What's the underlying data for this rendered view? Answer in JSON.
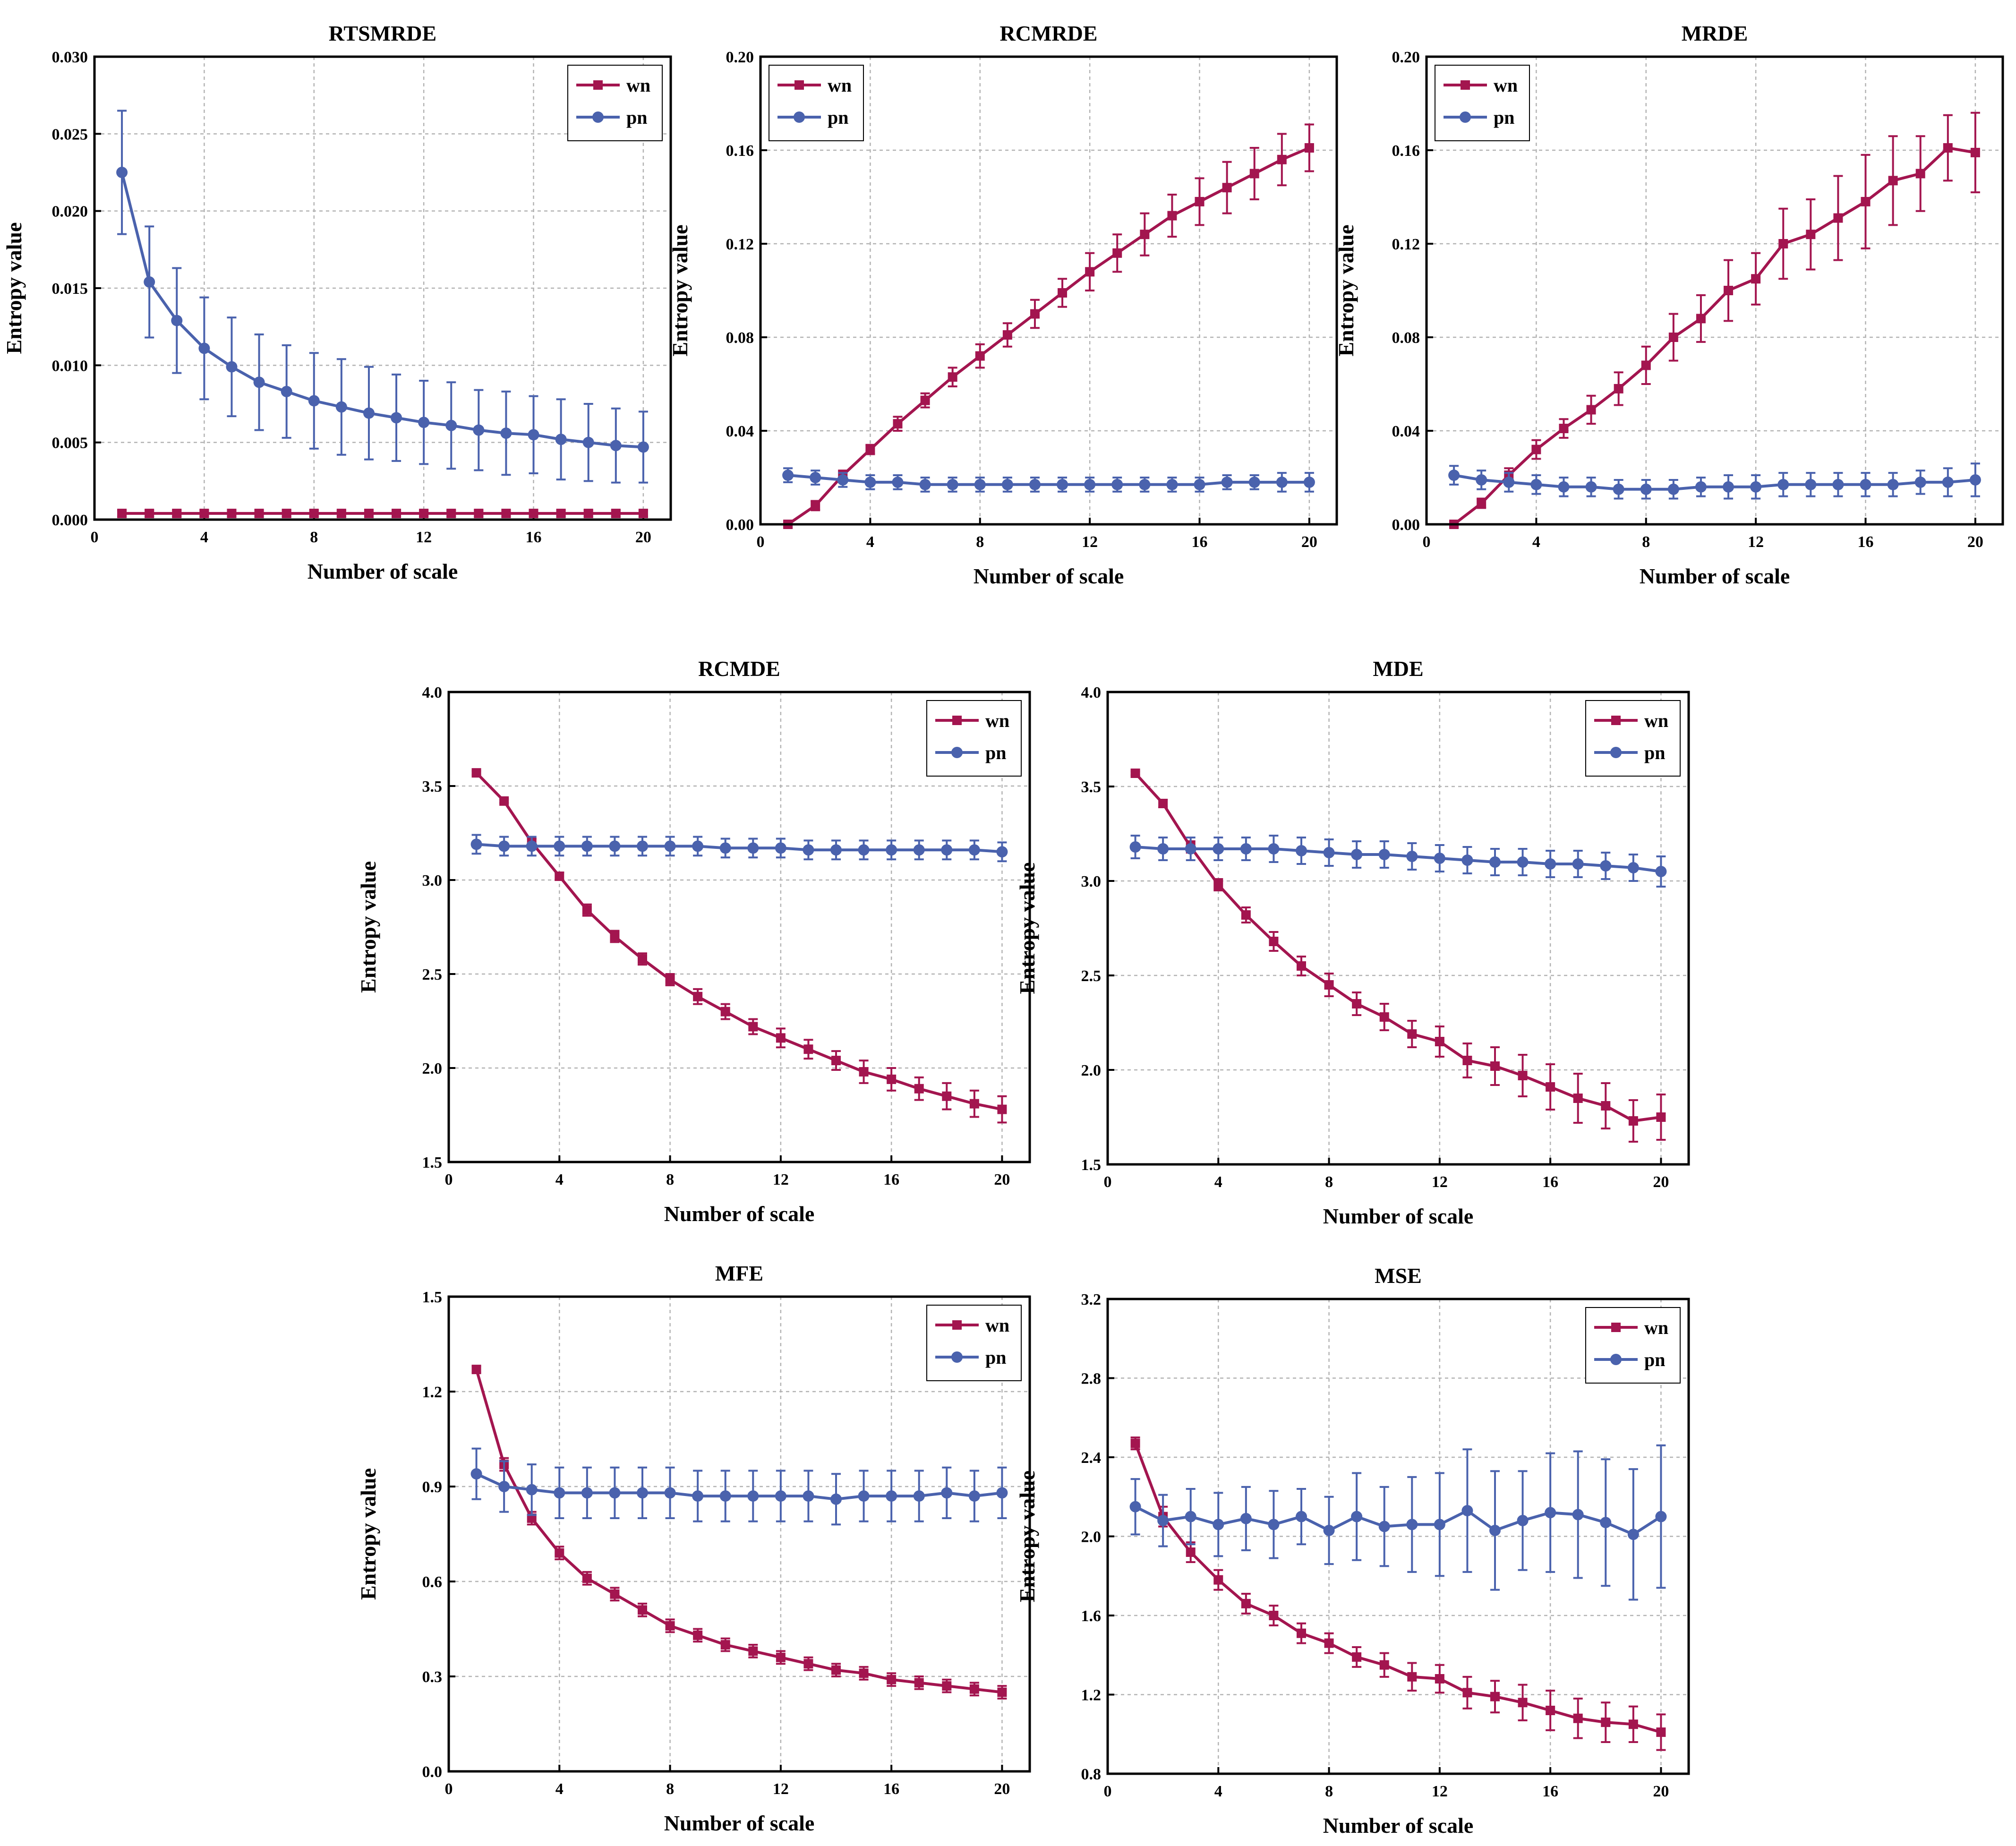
{
  "colors": {
    "wn": "#a3154f",
    "pn": "#4a62ad",
    "grid": "#b3b3b3",
    "frame": "#000000"
  },
  "chart_data": [
    {
      "type": "line",
      "title": "RTSMRDE",
      "xlabel": "Number of scale",
      "ylabel": "Entropy value",
      "xlim": [
        0,
        21
      ],
      "ylim": [
        0,
        0.03
      ],
      "xticks": [
        0,
        4,
        8,
        12,
        16,
        20
      ],
      "yticks": [
        0,
        0.005,
        0.01,
        0.015,
        0.02,
        0.025,
        0.03
      ],
      "ytick_labels": [
        "0.000",
        "0.005",
        "0.010",
        "0.015",
        "0.020",
        "0.025",
        "0.030"
      ],
      "grid": true,
      "legend_position": "top-right",
      "x": [
        1,
        2,
        3,
        4,
        5,
        6,
        7,
        8,
        9,
        10,
        11,
        12,
        13,
        14,
        15,
        16,
        17,
        18,
        19,
        20
      ],
      "series": [
        {
          "name": "wn",
          "marker": "square",
          "values": [
            0.0004,
            0.0004,
            0.0004,
            0.0004,
            0.0004,
            0.0004,
            0.0004,
            0.0004,
            0.0004,
            0.0004,
            0.0004,
            0.0004,
            0.0004,
            0.0004,
            0.0004,
            0.0004,
            0.0004,
            0.0004,
            0.0004,
            0.0004
          ],
          "errors": [
            0.0002,
            0.0002,
            0.0002,
            0.0002,
            0.0002,
            0.0002,
            0.0002,
            0.0002,
            0.0002,
            0.0002,
            0.0002,
            0.0002,
            0.0002,
            0.0002,
            0.0002,
            0.0002,
            0.0002,
            0.0002,
            0.0002,
            0.0002
          ]
        },
        {
          "name": "pn",
          "marker": "circle",
          "values": [
            0.0225,
            0.0154,
            0.0129,
            0.0111,
            0.0099,
            0.0089,
            0.0083,
            0.0077,
            0.0073,
            0.0069,
            0.0066,
            0.0063,
            0.0061,
            0.0058,
            0.0056,
            0.0055,
            0.0052,
            0.005,
            0.0048,
            0.0047
          ],
          "errors": [
            0.004,
            0.0036,
            0.0034,
            0.0033,
            0.0032,
            0.0031,
            0.003,
            0.0031,
            0.0031,
            0.003,
            0.0028,
            0.0027,
            0.0028,
            0.0026,
            0.0027,
            0.0025,
            0.0026,
            0.0025,
            0.0024,
            0.0023
          ]
        }
      ]
    },
    {
      "type": "line",
      "title": "RCMRDE",
      "xlabel": "Number of scale",
      "ylabel": "Entropy value",
      "xlim": [
        0,
        21
      ],
      "ylim": [
        0,
        0.2
      ],
      "xticks": [
        0,
        4,
        8,
        12,
        16,
        20
      ],
      "yticks": [
        0,
        0.04,
        0.08,
        0.12,
        0.16,
        0.2
      ],
      "ytick_labels": [
        "0.00",
        "0.04",
        "0.08",
        "0.12",
        "0.16",
        "0.20"
      ],
      "grid": true,
      "legend_position": "top-left",
      "x": [
        1,
        2,
        3,
        4,
        5,
        6,
        7,
        8,
        9,
        10,
        11,
        12,
        13,
        14,
        15,
        16,
        17,
        18,
        19,
        20
      ],
      "series": [
        {
          "name": "wn",
          "marker": "square",
          "values": [
            0.0,
            0.008,
            0.021,
            0.032,
            0.043,
            0.053,
            0.063,
            0.072,
            0.081,
            0.09,
            0.099,
            0.108,
            0.116,
            0.124,
            0.132,
            0.138,
            0.144,
            0.15,
            0.156,
            0.161
          ],
          "errors": [
            0.001,
            0.002,
            0.002,
            0.002,
            0.003,
            0.003,
            0.004,
            0.005,
            0.005,
            0.006,
            0.006,
            0.008,
            0.008,
            0.009,
            0.009,
            0.01,
            0.011,
            0.011,
            0.011,
            0.01
          ]
        },
        {
          "name": "pn",
          "marker": "circle",
          "values": [
            0.021,
            0.02,
            0.019,
            0.018,
            0.018,
            0.017,
            0.017,
            0.017,
            0.017,
            0.017,
            0.017,
            0.017,
            0.017,
            0.017,
            0.017,
            0.017,
            0.018,
            0.018,
            0.018,
            0.018
          ],
          "errors": [
            0.003,
            0.003,
            0.003,
            0.003,
            0.003,
            0.003,
            0.003,
            0.003,
            0.003,
            0.003,
            0.003,
            0.003,
            0.003,
            0.003,
            0.003,
            0.003,
            0.003,
            0.003,
            0.004,
            0.004
          ]
        }
      ]
    },
    {
      "type": "line",
      "title": "MRDE",
      "xlabel": "Number of scale",
      "ylabel": "Entropy value",
      "xlim": [
        0,
        21
      ],
      "ylim": [
        0,
        0.2
      ],
      "xticks": [
        0,
        4,
        8,
        12,
        16,
        20
      ],
      "yticks": [
        0,
        0.04,
        0.08,
        0.12,
        0.16,
        0.2
      ],
      "ytick_labels": [
        "0.00",
        "0.04",
        "0.08",
        "0.12",
        "0.16",
        "0.20"
      ],
      "grid": true,
      "legend_position": "top-left",
      "x": [
        1,
        2,
        3,
        4,
        5,
        6,
        7,
        8,
        9,
        10,
        11,
        12,
        13,
        14,
        15,
        16,
        17,
        18,
        19,
        20
      ],
      "series": [
        {
          "name": "wn",
          "marker": "square",
          "values": [
            0.0,
            0.009,
            0.021,
            0.032,
            0.041,
            0.049,
            0.058,
            0.068,
            0.08,
            0.088,
            0.1,
            0.105,
            0.12,
            0.124,
            0.131,
            0.138,
            0.147,
            0.15,
            0.161,
            0.159
          ],
          "errors": [
            0.001,
            0.002,
            0.003,
            0.004,
            0.004,
            0.006,
            0.007,
            0.008,
            0.01,
            0.01,
            0.013,
            0.011,
            0.015,
            0.015,
            0.018,
            0.02,
            0.019,
            0.016,
            0.014,
            0.017
          ]
        },
        {
          "name": "pn",
          "marker": "circle",
          "values": [
            0.021,
            0.019,
            0.018,
            0.017,
            0.016,
            0.016,
            0.015,
            0.015,
            0.015,
            0.016,
            0.016,
            0.016,
            0.017,
            0.017,
            0.017,
            0.017,
            0.017,
            0.018,
            0.018,
            0.019
          ],
          "errors": [
            0.004,
            0.004,
            0.004,
            0.004,
            0.004,
            0.004,
            0.004,
            0.004,
            0.004,
            0.004,
            0.005,
            0.005,
            0.005,
            0.005,
            0.005,
            0.005,
            0.005,
            0.005,
            0.006,
            0.007
          ]
        }
      ]
    },
    {
      "type": "line",
      "title": "RCMDE",
      "xlabel": "Number of scale",
      "ylabel": "Entropy value",
      "xlim": [
        0,
        21
      ],
      "ylim": [
        1.5,
        4.0
      ],
      "xticks": [
        0,
        4,
        8,
        12,
        16,
        20
      ],
      "yticks": [
        1.5,
        2.0,
        2.5,
        3.0,
        3.5,
        4.0
      ],
      "ytick_labels": [
        "1.5",
        "2.0",
        "2.5",
        "3.0",
        "3.5",
        "4.0"
      ],
      "grid": true,
      "legend_position": "top-right",
      "x": [
        1,
        2,
        3,
        4,
        5,
        6,
        7,
        8,
        9,
        10,
        11,
        12,
        13,
        14,
        15,
        16,
        17,
        18,
        19,
        20
      ],
      "series": [
        {
          "name": "wn",
          "marker": "square",
          "values": [
            3.57,
            3.42,
            3.2,
            3.02,
            2.84,
            2.7,
            2.58,
            2.47,
            2.38,
            2.3,
            2.22,
            2.16,
            2.1,
            2.04,
            1.98,
            1.94,
            1.89,
            1.85,
            1.81,
            1.78
          ],
          "errors": [
            0.01,
            0.01,
            0.02,
            0.02,
            0.03,
            0.03,
            0.03,
            0.03,
            0.04,
            0.04,
            0.04,
            0.05,
            0.05,
            0.05,
            0.06,
            0.06,
            0.06,
            0.07,
            0.07,
            0.07
          ]
        },
        {
          "name": "pn",
          "marker": "circle",
          "values": [
            3.19,
            3.18,
            3.18,
            3.18,
            3.18,
            3.18,
            3.18,
            3.18,
            3.18,
            3.17,
            3.17,
            3.17,
            3.16,
            3.16,
            3.16,
            3.16,
            3.16,
            3.16,
            3.16,
            3.15
          ],
          "errors": [
            0.05,
            0.05,
            0.05,
            0.05,
            0.05,
            0.05,
            0.05,
            0.05,
            0.05,
            0.05,
            0.05,
            0.05,
            0.05,
            0.05,
            0.05,
            0.05,
            0.05,
            0.05,
            0.05,
            0.05
          ]
        }
      ]
    },
    {
      "type": "line",
      "title": "MDE",
      "xlabel": "Number of scale",
      "ylabel": "Entropy value",
      "xlim": [
        0,
        21
      ],
      "ylim": [
        1.5,
        4.0
      ],
      "xticks": [
        0,
        4,
        8,
        12,
        16,
        20
      ],
      "yticks": [
        1.5,
        2.0,
        2.5,
        3.0,
        3.5,
        4.0
      ],
      "ytick_labels": [
        "1.5",
        "2.0",
        "2.5",
        "3.0",
        "3.5",
        "4.0"
      ],
      "grid": true,
      "legend_position": "top-right",
      "x": [
        1,
        2,
        3,
        4,
        5,
        6,
        7,
        8,
        9,
        10,
        11,
        12,
        13,
        14,
        15,
        16,
        17,
        18,
        19,
        20
      ],
      "series": [
        {
          "name": "wn",
          "marker": "square",
          "values": [
            3.57,
            3.41,
            3.18,
            2.98,
            2.82,
            2.68,
            2.55,
            2.45,
            2.35,
            2.28,
            2.19,
            2.15,
            2.05,
            2.02,
            1.97,
            1.91,
            1.85,
            1.81,
            1.73,
            1.75
          ],
          "errors": [
            0.01,
            0.02,
            0.03,
            0.03,
            0.04,
            0.05,
            0.05,
            0.06,
            0.06,
            0.07,
            0.07,
            0.08,
            0.09,
            0.1,
            0.11,
            0.12,
            0.13,
            0.12,
            0.11,
            0.12
          ]
        },
        {
          "name": "pn",
          "marker": "circle",
          "values": [
            3.18,
            3.17,
            3.17,
            3.17,
            3.17,
            3.17,
            3.16,
            3.15,
            3.14,
            3.14,
            3.13,
            3.12,
            3.11,
            3.1,
            3.1,
            3.09,
            3.09,
            3.08,
            3.07,
            3.05
          ],
          "errors": [
            0.06,
            0.06,
            0.06,
            0.06,
            0.06,
            0.07,
            0.07,
            0.07,
            0.07,
            0.07,
            0.07,
            0.07,
            0.07,
            0.07,
            0.07,
            0.07,
            0.07,
            0.07,
            0.07,
            0.08
          ]
        }
      ]
    },
    {
      "type": "line",
      "title": "MFE",
      "xlabel": "Number of scale",
      "ylabel": "Entropy value",
      "xlim": [
        0,
        21
      ],
      "ylim": [
        0,
        1.5
      ],
      "xticks": [
        0,
        4,
        8,
        12,
        16,
        20
      ],
      "yticks": [
        0,
        0.3,
        0.6,
        0.9,
        1.2,
        1.5
      ],
      "ytick_labels": [
        "0.0",
        "0.3",
        "0.6",
        "0.9",
        "1.2",
        "1.5"
      ],
      "grid": true,
      "legend_position": "top-right",
      "x": [
        1,
        2,
        3,
        4,
        5,
        6,
        7,
        8,
        9,
        10,
        11,
        12,
        13,
        14,
        15,
        16,
        17,
        18,
        19,
        20
      ],
      "series": [
        {
          "name": "wn",
          "marker": "square",
          "values": [
            1.27,
            0.97,
            0.8,
            0.69,
            0.61,
            0.56,
            0.51,
            0.46,
            0.43,
            0.4,
            0.38,
            0.36,
            0.34,
            0.32,
            0.31,
            0.29,
            0.28,
            0.27,
            0.26,
            0.25
          ],
          "errors": [
            0.01,
            0.02,
            0.02,
            0.02,
            0.02,
            0.02,
            0.02,
            0.02,
            0.02,
            0.02,
            0.02,
            0.02,
            0.02,
            0.02,
            0.02,
            0.02,
            0.02,
            0.02,
            0.02,
            0.02
          ]
        },
        {
          "name": "pn",
          "marker": "circle",
          "values": [
            0.94,
            0.9,
            0.89,
            0.88,
            0.88,
            0.88,
            0.88,
            0.88,
            0.87,
            0.87,
            0.87,
            0.87,
            0.87,
            0.86,
            0.87,
            0.87,
            0.87,
            0.88,
            0.87,
            0.88
          ],
          "errors": [
            0.08,
            0.08,
            0.08,
            0.08,
            0.08,
            0.08,
            0.08,
            0.08,
            0.08,
            0.08,
            0.08,
            0.08,
            0.08,
            0.08,
            0.08,
            0.08,
            0.08,
            0.08,
            0.08,
            0.08
          ]
        }
      ]
    },
    {
      "type": "line",
      "title": "MSE",
      "xlabel": "Number of scale",
      "ylabel": "Entropy value",
      "xlim": [
        0,
        21
      ],
      "ylim": [
        0.8,
        3.2
      ],
      "xticks": [
        0,
        4,
        8,
        12,
        16,
        20
      ],
      "yticks": [
        0.8,
        1.2,
        1.6,
        2.0,
        2.4,
        2.8,
        3.2
      ],
      "ytick_labels": [
        "0.8",
        "1.2",
        "1.6",
        "2.0",
        "2.4",
        "2.8",
        "3.2"
      ],
      "grid": true,
      "legend_position": "top-right",
      "x": [
        1,
        2,
        3,
        4,
        5,
        6,
        7,
        8,
        9,
        10,
        11,
        12,
        13,
        14,
        15,
        16,
        17,
        18,
        19,
        20
      ],
      "series": [
        {
          "name": "wn",
          "marker": "square",
          "values": [
            2.47,
            2.1,
            1.92,
            1.78,
            1.66,
            1.6,
            1.51,
            1.46,
            1.39,
            1.35,
            1.29,
            1.28,
            1.21,
            1.19,
            1.16,
            1.12,
            1.08,
            1.06,
            1.05,
            1.01
          ],
          "errors": [
            0.03,
            0.05,
            0.05,
            0.05,
            0.05,
            0.05,
            0.05,
            0.05,
            0.05,
            0.06,
            0.07,
            0.07,
            0.08,
            0.08,
            0.09,
            0.1,
            0.1,
            0.1,
            0.09,
            0.09
          ]
        },
        {
          "name": "pn",
          "marker": "circle",
          "values": [
            2.15,
            2.08,
            2.1,
            2.06,
            2.09,
            2.06,
            2.1,
            2.03,
            2.1,
            2.05,
            2.06,
            2.06,
            2.13,
            2.03,
            2.08,
            2.12,
            2.11,
            2.07,
            2.01,
            2.1
          ],
          "errors": [
            0.14,
            0.13,
            0.14,
            0.16,
            0.16,
            0.17,
            0.14,
            0.17,
            0.22,
            0.2,
            0.24,
            0.26,
            0.31,
            0.3,
            0.25,
            0.3,
            0.32,
            0.32,
            0.33,
            0.36
          ]
        }
      ]
    }
  ]
}
